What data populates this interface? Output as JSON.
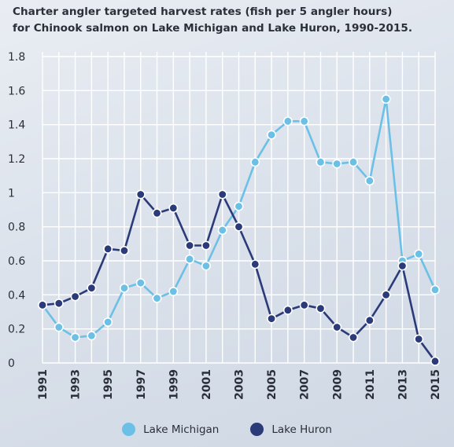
{
  "colors": {
    "michigan": "#6cc0e6",
    "huron": "#2b3a78",
    "grid": "#ffffff",
    "text": "#2b2f39"
  },
  "chart_data": {
    "type": "line",
    "title_lines": [
      "Charter angler targeted harvest rates (fish per 5 angler hours)",
      "for Chinook salmon on Lake Michigan and Lake Huron, 1990-2015."
    ],
    "xlabel": "",
    "ylabel": "",
    "x": [
      1991,
      1992,
      1993,
      1994,
      1995,
      1996,
      1997,
      1998,
      1999,
      2000,
      2001,
      2002,
      2003,
      2004,
      2005,
      2006,
      2007,
      2008,
      2009,
      2010,
      2011,
      2012,
      2013,
      2014,
      2015
    ],
    "xticks": [
      "1991",
      "1993",
      "1995",
      "1997",
      "1999",
      "2001",
      "2003",
      "2005",
      "2007",
      "2009",
      "2011",
      "2013",
      "2015"
    ],
    "yticks": [
      "0",
      "0.2",
      "0.4",
      "0.6",
      "0.8",
      "1",
      "1.2",
      "1.4",
      "1.6",
      "1.8"
    ],
    "ylim": [
      0,
      1.8
    ],
    "grid": true,
    "legend_position": "bottom",
    "series": [
      {
        "name": "Lake Michigan",
        "color_key": "michigan",
        "values": [
          0.34,
          0.21,
          0.15,
          0.16,
          0.24,
          0.44,
          0.47,
          0.38,
          0.42,
          0.61,
          0.57,
          0.78,
          0.92,
          1.18,
          1.34,
          1.42,
          1.42,
          1.18,
          1.17,
          1.18,
          1.07,
          1.55,
          0.6,
          0.64,
          0.43
        ]
      },
      {
        "name": "Lake Huron",
        "color_key": "huron",
        "values": [
          0.34,
          0.35,
          0.39,
          0.44,
          0.67,
          0.66,
          0.99,
          0.88,
          0.91,
          0.69,
          0.69,
          0.99,
          0.8,
          0.58,
          0.26,
          0.31,
          0.34,
          0.32,
          0.21,
          0.15,
          0.25,
          0.4,
          0.57,
          0.14,
          0.01
        ]
      }
    ]
  }
}
